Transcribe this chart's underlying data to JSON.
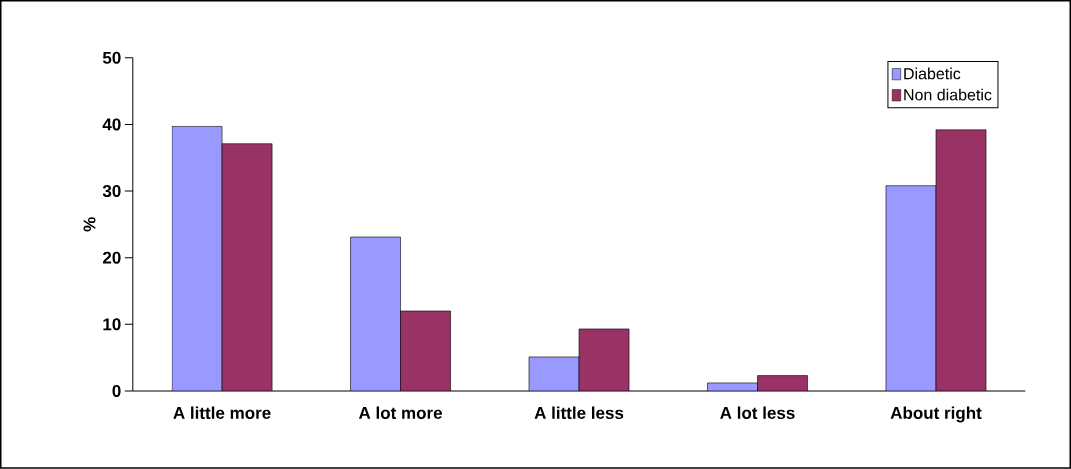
{
  "chart_data": {
    "type": "bar",
    "ylabel": "%",
    "categories": [
      "A little more",
      "A lot more",
      "A little less",
      "A lot less",
      "About right"
    ],
    "series": [
      {
        "name": "Diabetic",
        "color": "#9999ff",
        "values": [
          39.7,
          23.1,
          5.1,
          1.2,
          30.8
        ]
      },
      {
        "name": "Non diabetic",
        "color": "#993366",
        "values": [
          37.1,
          12,
          9.3,
          2.3,
          39.2
        ]
      }
    ],
    "ylim": [
      0,
      50
    ],
    "yticks": [
      0,
      10,
      20,
      30,
      40,
      50
    ],
    "legend": "top right"
  }
}
